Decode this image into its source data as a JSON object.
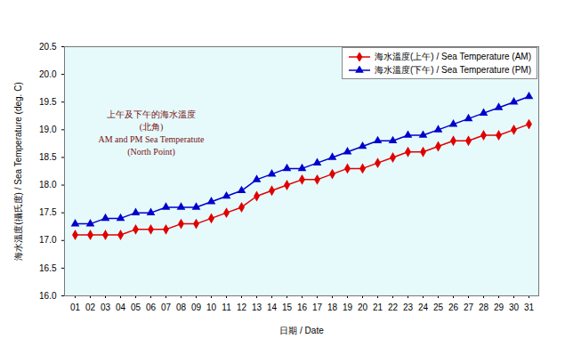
{
  "chart_data": {
    "type": "line",
    "x_label": "日期 / Date",
    "y_label": "海水溫度(攝氏度) / Sea Temperature (deg. C)",
    "annotations": [
      "上午及下午的海水溫度",
      "(北角)",
      "AM and PM Sea Temperatute",
      "(North Point)"
    ],
    "categories": [
      "01",
      "02",
      "03",
      "04",
      "05",
      "06",
      "07",
      "08",
      "09",
      "10",
      "11",
      "12",
      "13",
      "14",
      "15",
      "16",
      "17",
      "18",
      "19",
      "20",
      "21",
      "22",
      "23",
      "24",
      "25",
      "26",
      "27",
      "28",
      "29",
      "30",
      "31"
    ],
    "series": [
      {
        "name": "海水溫度(上午) / Sea Temperature (AM)",
        "color": "#e00000",
        "marker": "diamond",
        "values": [
          17.1,
          17.1,
          17.1,
          17.1,
          17.2,
          17.2,
          17.2,
          17.3,
          17.3,
          17.4,
          17.5,
          17.6,
          17.8,
          17.9,
          18.0,
          18.1,
          18.1,
          18.2,
          18.3,
          18.3,
          18.4,
          18.5,
          18.6,
          18.6,
          18.7,
          18.8,
          18.8,
          18.9,
          18.9,
          19.0,
          19.1
        ]
      },
      {
        "name": "海水溫度(下午) / Sea Temperature (PM)",
        "color": "#0000cc",
        "marker": "triangle",
        "values": [
          17.3,
          17.3,
          17.4,
          17.4,
          17.5,
          17.5,
          17.6,
          17.6,
          17.6,
          17.7,
          17.8,
          17.9,
          18.1,
          18.2,
          18.3,
          18.3,
          18.4,
          18.5,
          18.6,
          18.7,
          18.8,
          18.8,
          18.9,
          18.9,
          19.0,
          19.1,
          19.2,
          19.3,
          19.4,
          19.5,
          19.6
        ]
      }
    ],
    "ylim": [
      16,
      20.5
    ],
    "yticks": [
      {
        "value": 16,
        "label": "16.0"
      },
      16.5,
      {
        "value": 17,
        "label": "17.0"
      },
      17.5,
      {
        "value": 18,
        "label": "18.0"
      },
      18.5,
      {
        "value": 19,
        "label": "19.0"
      },
      19.5,
      {
        "value": 20,
        "label": "20.0"
      },
      20.5
    ],
    "grid": false,
    "legend": "top-right"
  }
}
